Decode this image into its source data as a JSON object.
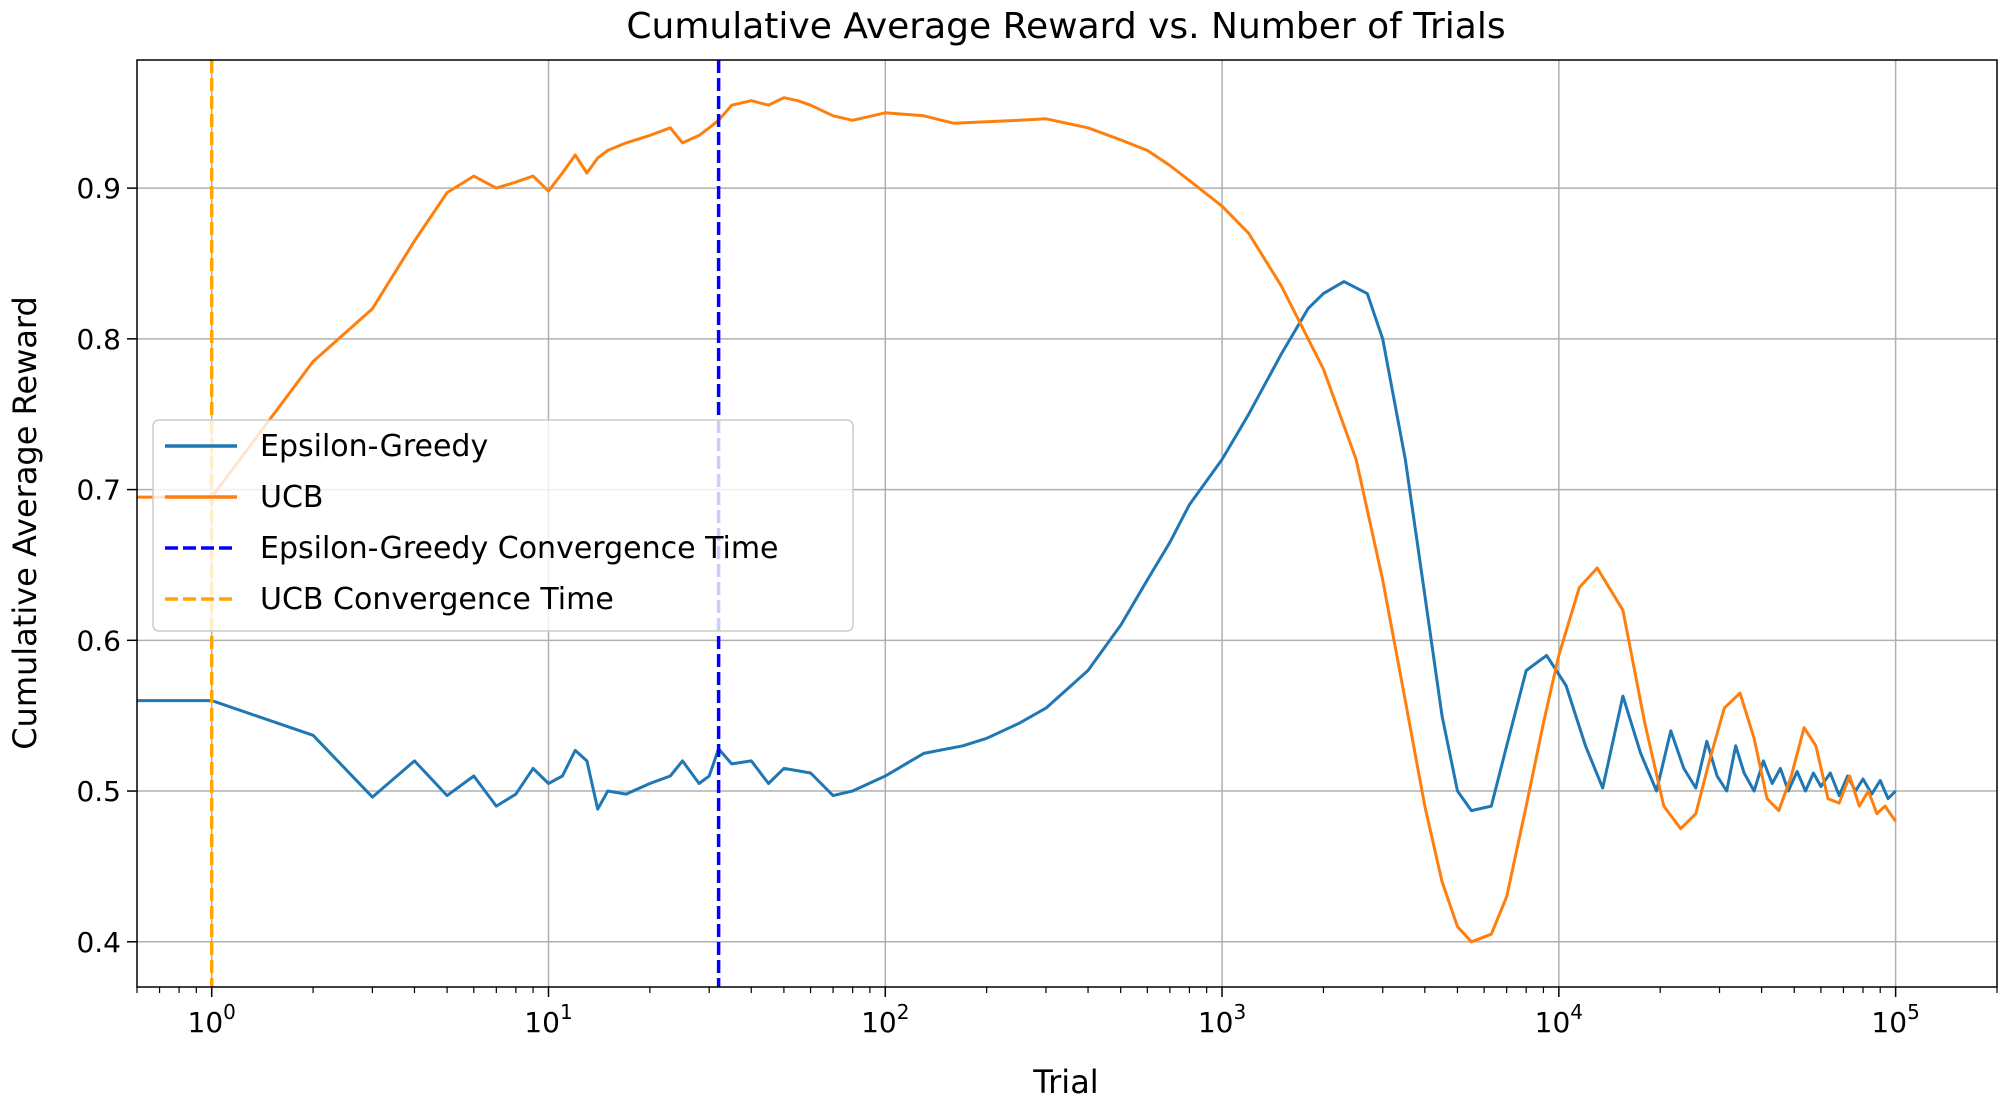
{
  "chart_data": {
    "type": "line",
    "title": "Cumulative Average Reward vs. Number of Trials",
    "xlabel": "Trial",
    "ylabel": "Cumulative Average Reward",
    "xscale": "log",
    "xlim": [
      0.6,
      200000
    ],
    "ylim": [
      0.37,
      0.985
    ],
    "grid": true,
    "legend_position": "center-left",
    "xticks": [
      {
        "value": 1,
        "base": "10",
        "exp": "0"
      },
      {
        "value": 10,
        "base": "10",
        "exp": "1"
      },
      {
        "value": 100,
        "base": "10",
        "exp": "2"
      },
      {
        "value": 1000,
        "base": "10",
        "exp": "3"
      },
      {
        "value": 10000,
        "base": "10",
        "exp": "4"
      },
      {
        "value": 100000,
        "base": "10",
        "exp": "5"
      }
    ],
    "yticks": [
      {
        "value": 0.4,
        "label": "0.4"
      },
      {
        "value": 0.5,
        "label": "0.5"
      },
      {
        "value": 0.6,
        "label": "0.6"
      },
      {
        "value": 0.7,
        "label": "0.7"
      },
      {
        "value": 0.8,
        "label": "0.8"
      },
      {
        "value": 0.9,
        "label": "0.9"
      }
    ],
    "series": [
      {
        "name": "Epsilon-Greedy",
        "color": "#1f77b4",
        "style": "solid",
        "x": [
          0.6,
          1,
          2,
          3,
          4,
          5,
          6,
          7,
          8,
          9,
          10,
          11,
          12,
          13,
          14,
          15,
          17,
          20,
          23,
          25,
          28,
          30,
          32,
          35,
          40,
          45,
          50,
          60,
          70,
          80,
          100,
          130,
          170,
          200,
          250,
          300,
          400,
          500,
          600,
          700,
          800,
          1000,
          1200,
          1500,
          1800,
          2000,
          2300,
          2700,
          3000,
          3500,
          4000,
          4500,
          5000,
          5500,
          6300,
          7000,
          8000,
          9200,
          10500,
          12000,
          13500,
          15500,
          17500,
          19500,
          21500,
          23500,
          25500,
          27500,
          29500,
          31500,
          33500,
          35500,
          38000,
          40500,
          43000,
          45500,
          48000,
          51000,
          54000,
          57000,
          60000,
          64000,
          68000,
          72000,
          76000,
          80000,
          85000,
          90000,
          95000,
          100000
        ],
        "y": [
          0.56,
          0.56,
          0.537,
          0.496,
          0.52,
          0.497,
          0.51,
          0.49,
          0.498,
          0.515,
          0.505,
          0.51,
          0.527,
          0.52,
          0.488,
          0.5,
          0.498,
          0.505,
          0.51,
          0.52,
          0.505,
          0.51,
          0.528,
          0.518,
          0.52,
          0.505,
          0.515,
          0.512,
          0.497,
          0.5,
          0.51,
          0.525,
          0.53,
          0.535,
          0.545,
          0.555,
          0.58,
          0.61,
          0.64,
          0.665,
          0.69,
          0.72,
          0.75,
          0.79,
          0.82,
          0.83,
          0.838,
          0.83,
          0.8,
          0.72,
          0.63,
          0.55,
          0.5,
          0.487,
          0.49,
          0.53,
          0.58,
          0.59,
          0.57,
          0.53,
          0.502,
          0.563,
          0.525,
          0.5,
          0.54,
          0.515,
          0.502,
          0.533,
          0.51,
          0.5,
          0.53,
          0.512,
          0.5,
          0.52,
          0.505,
          0.515,
          0.5,
          0.513,
          0.5,
          0.512,
          0.503,
          0.512,
          0.497,
          0.51,
          0.5,
          0.508,
          0.498,
          0.507,
          0.495,
          0.5
        ]
      },
      {
        "name": "UCB",
        "color": "#ff7f0e",
        "style": "solid",
        "x": [
          0.6,
          1,
          2,
          3,
          4,
          5,
          6,
          7,
          8,
          9,
          10,
          11,
          12,
          13,
          14,
          15,
          17,
          20,
          23,
          25,
          28,
          30,
          32,
          35,
          40,
          45,
          50,
          55,
          60,
          70,
          80,
          100,
          130,
          160,
          200,
          250,
          300,
          400,
          500,
          600,
          700,
          800,
          1000,
          1200,
          1500,
          2000,
          2500,
          3000,
          3500,
          4000,
          4500,
          5000,
          5500,
          6300,
          7000,
          8000,
          9000,
          10000,
          11500,
          13000,
          15500,
          18000,
          20500,
          23000,
          25500,
          28000,
          31000,
          34500,
          38000,
          41500,
          45000,
          49000,
          53500,
          58000,
          63000,
          68000,
          73000,
          78000,
          83000,
          88000,
          93000,
          100000
        ],
        "y": [
          0.695,
          0.695,
          0.785,
          0.82,
          0.865,
          0.897,
          0.908,
          0.9,
          0.904,
          0.908,
          0.898,
          0.91,
          0.922,
          0.91,
          0.92,
          0.925,
          0.93,
          0.935,
          0.94,
          0.93,
          0.935,
          0.94,
          0.945,
          0.955,
          0.958,
          0.955,
          0.96,
          0.958,
          0.955,
          0.948,
          0.945,
          0.95,
          0.948,
          0.943,
          0.944,
          0.945,
          0.946,
          0.94,
          0.932,
          0.925,
          0.915,
          0.905,
          0.888,
          0.87,
          0.835,
          0.78,
          0.72,
          0.64,
          0.56,
          0.49,
          0.44,
          0.41,
          0.4,
          0.405,
          0.43,
          0.49,
          0.545,
          0.59,
          0.635,
          0.648,
          0.62,
          0.545,
          0.49,
          0.475,
          0.485,
          0.52,
          0.555,
          0.565,
          0.535,
          0.495,
          0.487,
          0.51,
          0.542,
          0.53,
          0.495,
          0.492,
          0.51,
          0.49,
          0.5,
          0.485,
          0.49,
          0.48
        ]
      }
    ],
    "vlines": [
      {
        "name": "Epsilon-Greedy Convergence Time",
        "x": 32,
        "color": "#0000ff",
        "style": "dashed"
      },
      {
        "name": "UCB Convergence Time",
        "x": 1,
        "color": "#ffa500",
        "style": "dashed"
      }
    ],
    "legend": [
      {
        "label": "Epsilon-Greedy",
        "color": "#1f77b4",
        "style": "solid"
      },
      {
        "label": "UCB",
        "color": "#ff7f0e",
        "style": "solid"
      },
      {
        "label": "Epsilon-Greedy Convergence Time",
        "color": "#0000ff",
        "style": "dashed"
      },
      {
        "label": "UCB Convergence Time",
        "color": "#ffa500",
        "style": "dashed"
      }
    ]
  }
}
